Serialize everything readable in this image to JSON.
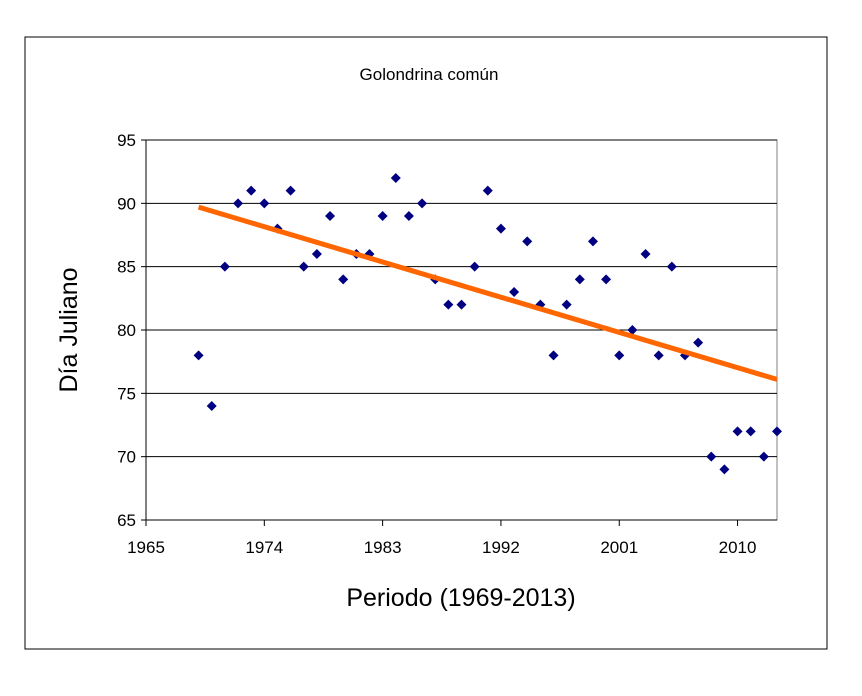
{
  "chart_data": {
    "type": "scatter",
    "title": "Golondrina común",
    "xlabel": "Periodo (1969-2013)",
    "ylabel": "Día Juliano",
    "xlim": [
      1965,
      2013
    ],
    "ylim": [
      65,
      95
    ],
    "xticks": [
      1965,
      1974,
      1983,
      1992,
      2001,
      2010
    ],
    "yticks": [
      65,
      70,
      75,
      80,
      85,
      90,
      95
    ],
    "grid": "horizontal",
    "legend": "none",
    "point_color": "#000080",
    "trend_color": "#ff6600",
    "series": [
      {
        "x": [
          1969,
          1970,
          1971,
          1972,
          1973,
          1974,
          1975,
          1976,
          1977,
          1978,
          1979,
          1980,
          1981,
          1982,
          1983,
          1984,
          1985,
          1986,
          1987,
          1988,
          1989,
          1990,
          1991,
          1992,
          1993,
          1994,
          1995,
          1996,
          1997,
          1998,
          1999,
          2000,
          2001,
          2002,
          2003,
          2004,
          2005,
          2006,
          2007,
          2008,
          2009,
          2010,
          2011,
          2012,
          2013
        ],
        "y": [
          78,
          74,
          85,
          90,
          91,
          90,
          88,
          91,
          85,
          86,
          89,
          84,
          86,
          86,
          89,
          92,
          89,
          90,
          84,
          82,
          82,
          85,
          91,
          88,
          83,
          87,
          82,
          78,
          82,
          84,
          87,
          84,
          78,
          80,
          86,
          78,
          85,
          78,
          79,
          70,
          69,
          72,
          72,
          70,
          72
        ]
      }
    ],
    "trendline": {
      "x": [
        1969,
        2013
      ],
      "y": [
        89.7,
        76.1
      ]
    }
  }
}
